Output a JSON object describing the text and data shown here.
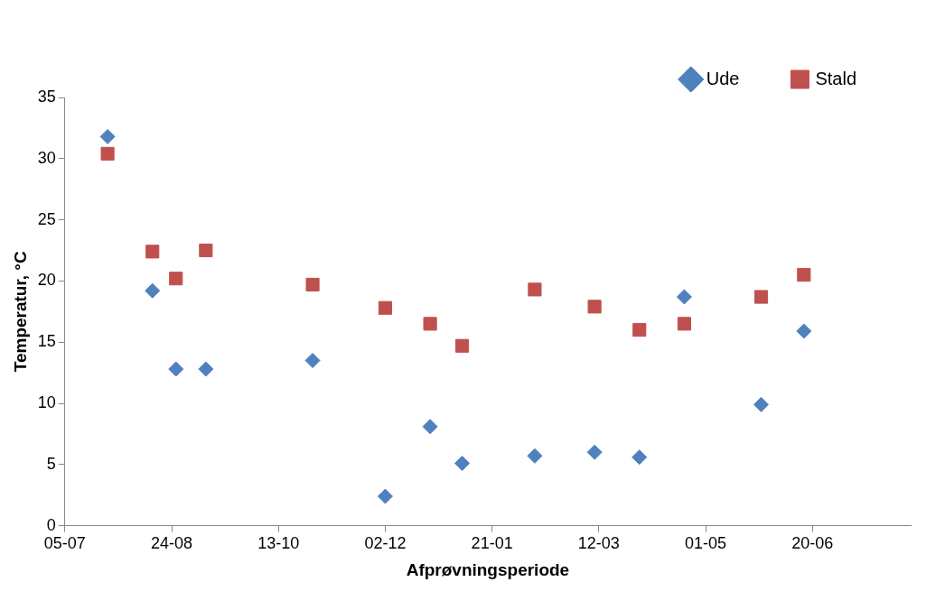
{
  "chart_data": {
    "type": "scatter",
    "xlabel": "Afprøvningsperiode",
    "ylabel": "Temperatur, °C",
    "x": [
      "2010-07-25",
      "2010-08-15",
      "2010-08-26",
      "2010-09-09",
      "2010-10-29",
      "2010-12-02",
      "2010-12-23",
      "2011-01-07",
      "2011-02-10",
      "2011-03-10",
      "2011-03-31",
      "2011-04-21",
      "2011-05-27",
      "2011-06-16"
    ],
    "series": [
      {
        "name": "Ude",
        "color": "#4f81bd",
        "marker": "diamond",
        "values": [
          31.8,
          19.2,
          12.8,
          12.8,
          13.5,
          2.4,
          8.1,
          5.1,
          5.7,
          6.0,
          5.6,
          18.7,
          9.9,
          15.9
        ]
      },
      {
        "name": "Stald",
        "color": "#c0504d",
        "marker": "square",
        "values": [
          30.4,
          22.4,
          20.2,
          22.5,
          19.7,
          17.8,
          16.5,
          14.7,
          19.3,
          17.9,
          16.0,
          16.5,
          18.7,
          20.5
        ]
      }
    ],
    "xlim": [
      "2010-07-05",
      "2011-08-05"
    ],
    "xticks": [
      {
        "value": "2010-07-05",
        "label": "05-07"
      },
      {
        "value": "2010-08-24",
        "label": "24-08"
      },
      {
        "value": "2010-10-13",
        "label": "13-10"
      },
      {
        "value": "2010-12-02",
        "label": "02-12"
      },
      {
        "value": "2011-01-21",
        "label": "21-01"
      },
      {
        "value": "2011-03-12",
        "label": "12-03"
      },
      {
        "value": "2011-05-01",
        "label": "01-05"
      },
      {
        "value": "2011-06-20",
        "label": "20-06"
      }
    ],
    "ylim": [
      0,
      35
    ],
    "yticks": [
      0,
      5,
      10,
      15,
      20,
      25,
      30,
      35
    ],
    "grid": false,
    "legend": "top right"
  }
}
